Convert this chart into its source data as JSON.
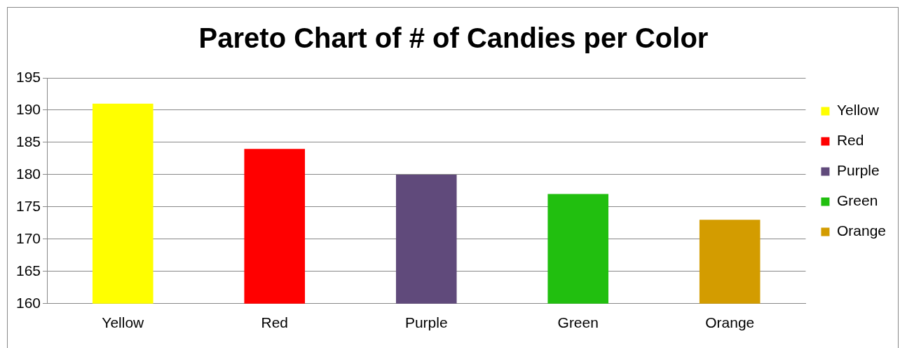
{
  "chart_data": {
    "type": "bar",
    "title": "Pareto Chart of # of Candies per Color",
    "categories": [
      "Yellow",
      "Red",
      "Purple",
      "Green",
      "Orange"
    ],
    "series": [
      {
        "name": "Yellow",
        "color": "#ffff00",
        "values": [
          191,
          null,
          null,
          null,
          null
        ]
      },
      {
        "name": "Red",
        "color": "#ff0000",
        "values": [
          null,
          184,
          null,
          null,
          null
        ]
      },
      {
        "name": "Purple",
        "color": "#604a7b",
        "values": [
          null,
          null,
          180,
          null,
          null
        ]
      },
      {
        "name": "Green",
        "color": "#21bf0f",
        "values": [
          null,
          null,
          null,
          177,
          null
        ]
      },
      {
        "name": "Orange",
        "color": "#d39c00",
        "values": [
          null,
          null,
          null,
          null,
          173
        ]
      }
    ],
    "ylim": [
      160,
      195
    ],
    "yticks": [
      160,
      165,
      170,
      175,
      180,
      185,
      190,
      195
    ],
    "grid": "y",
    "legend": "right"
  }
}
